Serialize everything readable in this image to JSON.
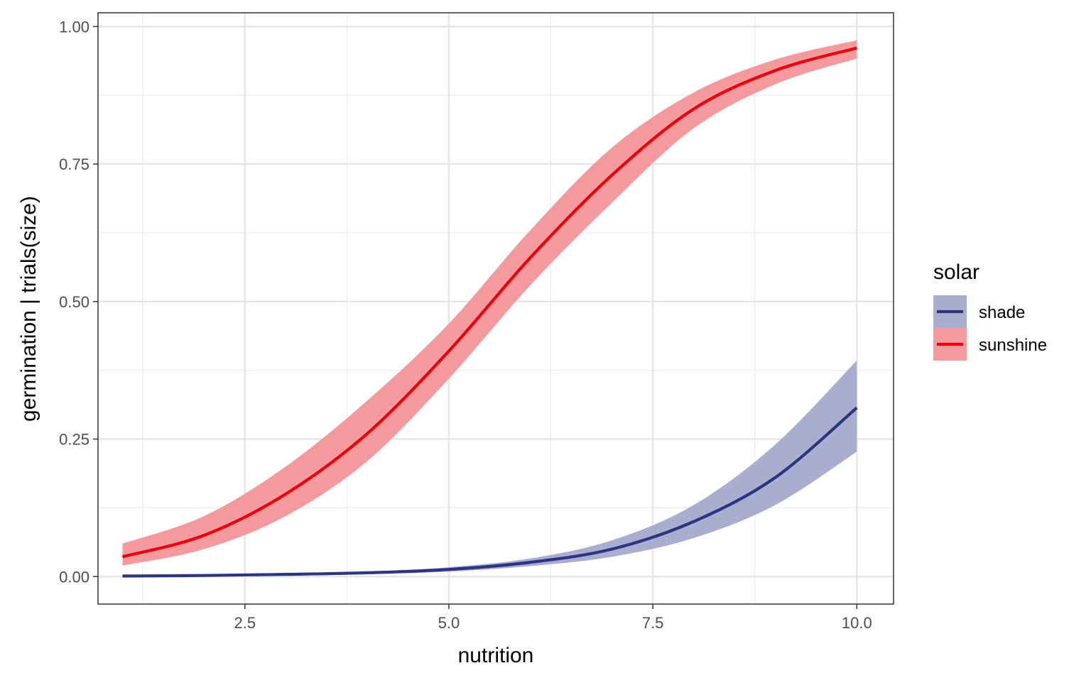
{
  "chart_data": {
    "type": "line",
    "xlabel": "nutrition",
    "ylabel": "germination | trials(size)",
    "xlim": [
      0.7,
      10.45
    ],
    "ylim": [
      -0.05,
      1.025
    ],
    "xticks": [
      2.5,
      5.0,
      7.5,
      10.0
    ],
    "xtick_labels": [
      "2.5",
      "5.0",
      "7.5",
      "10.0"
    ],
    "yticks": [
      0.0,
      0.25,
      0.5,
      0.75,
      1.0
    ],
    "ytick_labels": [
      "0.00",
      "0.25",
      "0.50",
      "0.75",
      "1.00"
    ],
    "grid": true,
    "legend": {
      "title": "solar",
      "placement": "right"
    },
    "series": [
      {
        "name": "shade",
        "color": "#2e3580",
        "band_color": "#a9aecf",
        "x": [
          1.0,
          2.0,
          3.0,
          4.0,
          5.0,
          6.0,
          7.0,
          8.0,
          9.0,
          10.0
        ],
        "y": [
          0.001,
          0.002,
          0.004,
          0.007,
          0.013,
          0.026,
          0.05,
          0.1,
          0.18,
          0.307
        ],
        "lower": [
          0.0,
          0.001,
          0.002,
          0.004,
          0.009,
          0.019,
          0.036,
          0.07,
          0.13,
          0.227
        ],
        "upper": [
          0.002,
          0.003,
          0.005,
          0.009,
          0.017,
          0.033,
          0.066,
          0.13,
          0.24,
          0.393
        ]
      },
      {
        "name": "sunshine",
        "color": "#e8000b",
        "band_color": "#f4999c",
        "x": [
          1.0,
          2.0,
          3.0,
          4.0,
          5.0,
          6.0,
          7.0,
          8.0,
          9.0,
          10.0
        ],
        "y": [
          0.036,
          0.075,
          0.15,
          0.26,
          0.41,
          0.58,
          0.73,
          0.85,
          0.92,
          0.961
        ],
        "lower": [
          0.02,
          0.05,
          0.11,
          0.21,
          0.36,
          0.53,
          0.68,
          0.815,
          0.895,
          0.942
        ],
        "upper": [
          0.06,
          0.11,
          0.2,
          0.32,
          0.46,
          0.63,
          0.78,
          0.88,
          0.94,
          0.975
        ]
      }
    ]
  }
}
